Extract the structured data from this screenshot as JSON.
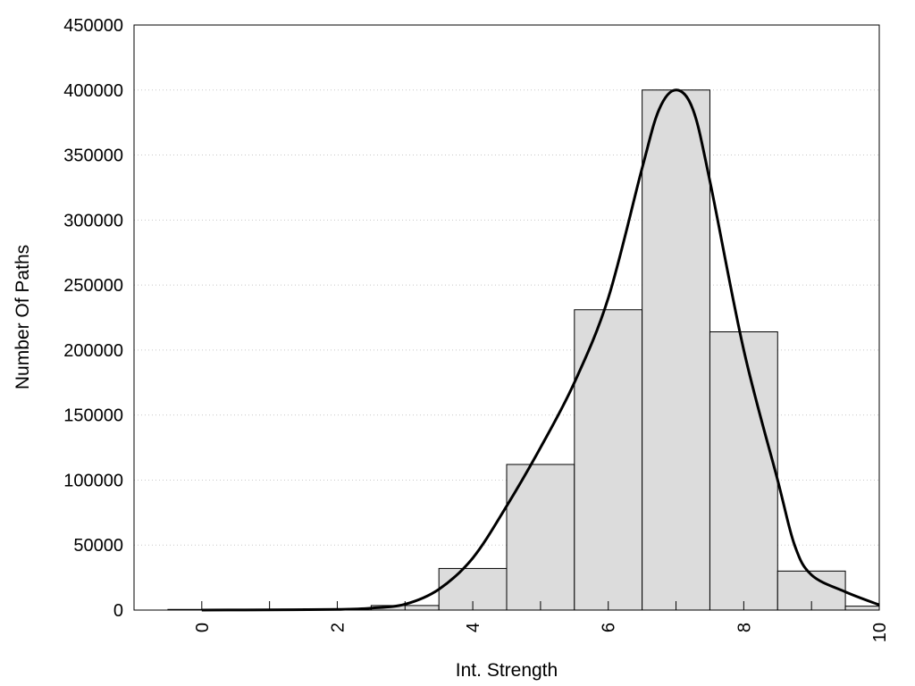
{
  "chart_data": {
    "type": "bar",
    "xlabel": "Int. Strength",
    "ylabel": "Number Of Paths",
    "xlim": [
      -1,
      10
    ],
    "ylim": [
      0,
      450000
    ],
    "x_ticks": [
      "0",
      "2",
      "4",
      "6",
      "8",
      "10"
    ],
    "y_ticks": [
      "0",
      "50000",
      "100000",
      "150000",
      "200000",
      "250000",
      "300000",
      "350000",
      "400000",
      "450000"
    ],
    "grid": "horizontal dotted",
    "bar_color": "#dcdcdc",
    "bars": {
      "x": [
        0,
        1,
        2,
        3,
        4,
        5,
        6,
        7,
        8,
        9,
        10
      ],
      "values": [
        500,
        300,
        1000,
        3500,
        32000,
        112000,
        231000,
        400000,
        214000,
        30000,
        3000
      ]
    },
    "curve": {
      "x": [
        0,
        1,
        2,
        2.5,
        3,
        3.5,
        4,
        4.5,
        5,
        5.5,
        6,
        6.5,
        6.75,
        7,
        7.25,
        7.5,
        8,
        8.5,
        8.75,
        9,
        9.5,
        10
      ],
      "y": [
        0,
        200,
        500,
        1500,
        4500,
        16000,
        40000,
        80000,
        125000,
        175000,
        240000,
        340000,
        385000,
        400000,
        385000,
        330000,
        200000,
        100000,
        50000,
        27000,
        14000,
        4000
      ]
    }
  }
}
